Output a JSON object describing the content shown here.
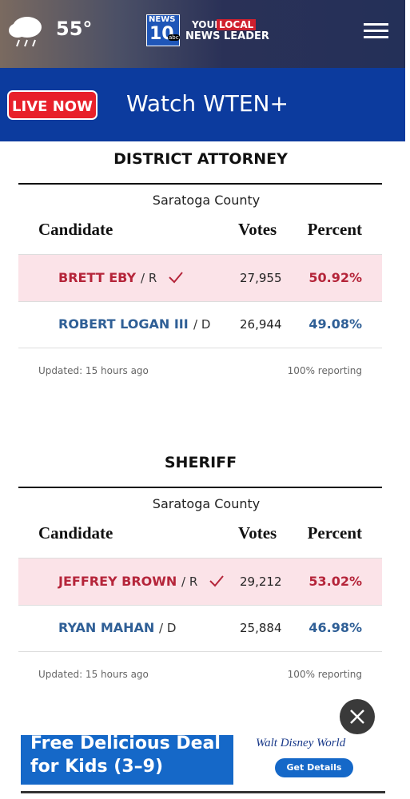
{
  "header": {
    "temperature": "55°",
    "logo_news": "NEWS",
    "logo_number": "10",
    "logo_abc": "abc",
    "tagline_your": "YOUR",
    "tagline_local": "LOCAL",
    "tagline_rest": "NEWS LEADER"
  },
  "live_bar": {
    "badge": "LIVE NOW",
    "text": "Watch WTEN+"
  },
  "races": [
    {
      "title": "DISTRICT ATTORNEY",
      "county": "Saratoga County",
      "columns": [
        "Candidate",
        "Votes",
        "Percent"
      ],
      "rows": [
        {
          "name": "BRETT EBY",
          "party": "/ R",
          "winner": true,
          "votes": "27,955",
          "percent": "50.92%"
        },
        {
          "name": "ROBERT LOGAN III",
          "party": "/ D",
          "winner": false,
          "votes": "26,944",
          "percent": "49.08%"
        }
      ],
      "updated": "Updated: 15 hours ago",
      "reporting": "100% reporting"
    },
    {
      "title": "SHERIFF",
      "county": "Saratoga County",
      "columns": [
        "Candidate",
        "Votes",
        "Percent"
      ],
      "rows": [
        {
          "name": "JEFFREY BROWN",
          "party": "/ R",
          "winner": true,
          "votes": "29,212",
          "percent": "53.02%"
        },
        {
          "name": "RYAN MAHAN",
          "party": "/ D",
          "winner": false,
          "votes": "25,884",
          "percent": "46.98%"
        }
      ],
      "updated": "Updated: 15 hours ago",
      "reporting": "100% reporting"
    }
  ],
  "ad": {
    "headline_1": "Free Delicious Deal",
    "headline_2": "for Kids (3–9)",
    "brand": "Walt Disney World",
    "button": "Get Details"
  }
}
